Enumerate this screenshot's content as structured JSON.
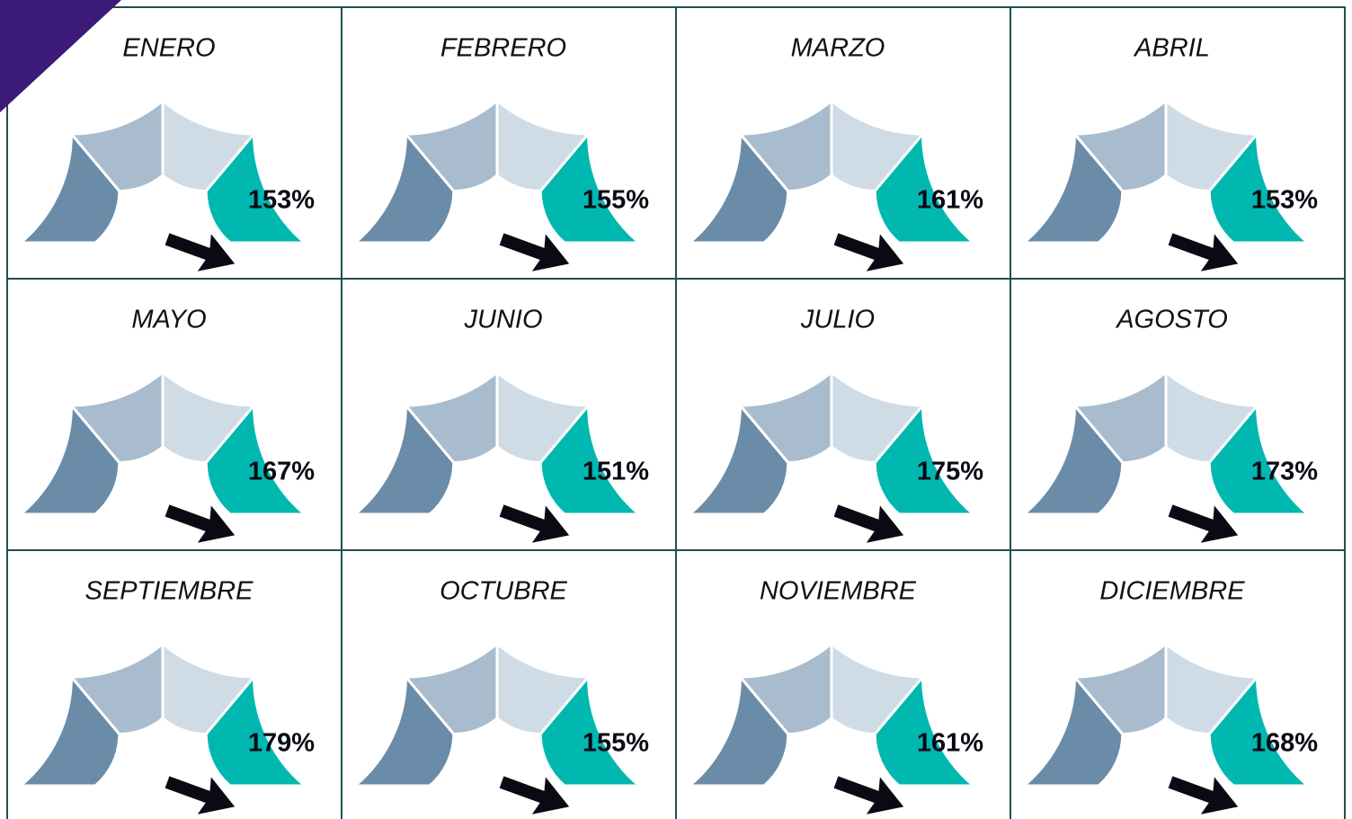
{
  "chart_data": [
    {
      "type": "gauge",
      "title": "ENERO",
      "values": [
        153
      ],
      "value_labels": [
        "153%"
      ],
      "colors": [
        "#6a8ca8",
        "#a9bccd",
        "#cfdce6",
        "#00b8b0"
      ]
    },
    {
      "type": "gauge",
      "title": "FEBRERO",
      "values": [
        155
      ],
      "value_labels": [
        "155%"
      ],
      "colors": [
        "#6a8ca8",
        "#a9bccd",
        "#cfdce6",
        "#00b8b0"
      ]
    },
    {
      "type": "gauge",
      "title": "MARZO",
      "values": [
        161
      ],
      "value_labels": [
        "161%"
      ],
      "colors": [
        "#6a8ca8",
        "#a9bccd",
        "#cfdce6",
        "#00b8b0"
      ]
    },
    {
      "type": "gauge",
      "title": "ABRIL",
      "values": [
        153
      ],
      "value_labels": [
        "153%"
      ],
      "colors": [
        "#6a8ca8",
        "#a9bccd",
        "#cfdce6",
        "#00b8b0"
      ]
    },
    {
      "type": "gauge",
      "title": "MAYO",
      "values": [
        167
      ],
      "value_labels": [
        "167%"
      ],
      "colors": [
        "#6a8ca8",
        "#a9bccd",
        "#cfdce6",
        "#00b8b0"
      ]
    },
    {
      "type": "gauge",
      "title": "JUNIO",
      "values": [
        151
      ],
      "value_labels": [
        "151%"
      ],
      "colors": [
        "#6a8ca8",
        "#a9bccd",
        "#cfdce6",
        "#00b8b0"
      ]
    },
    {
      "type": "gauge",
      "title": "JULIO",
      "values": [
        175
      ],
      "value_labels": [
        "175%"
      ],
      "colors": [
        "#6a8ca8",
        "#a9bccd",
        "#cfdce6",
        "#00b8b0"
      ]
    },
    {
      "type": "gauge",
      "title": "AGOSTO",
      "values": [
        173
      ],
      "value_labels": [
        "173%"
      ],
      "colors": [
        "#6a8ca8",
        "#a9bccd",
        "#cfdce6",
        "#00b8b0"
      ]
    },
    {
      "type": "gauge",
      "title": "SEPTIEMBRE",
      "values": [
        179
      ],
      "value_labels": [
        "179%"
      ],
      "colors": [
        "#6a8ca8",
        "#a9bccd",
        "#cfdce6",
        "#00b8b0"
      ]
    },
    {
      "type": "gauge",
      "title": "OCTUBRE",
      "values": [
        155
      ],
      "value_labels": [
        "155%"
      ],
      "colors": [
        "#6a8ca8",
        "#a9bccd",
        "#cfdce6",
        "#00b8b0"
      ]
    },
    {
      "type": "gauge",
      "title": "NOVIEMBRE",
      "values": [
        161
      ],
      "value_labels": [
        "161%"
      ],
      "colors": [
        "#6a8ca8",
        "#a9bccd",
        "#cfdce6",
        "#00b8b0"
      ]
    },
    {
      "type": "gauge",
      "title": "DICIEMBRE",
      "values": [
        168
      ],
      "value_labels": [
        "168%"
      ],
      "colors": [
        "#6a8ca8",
        "#a9bccd",
        "#cfdce6",
        "#00b8b0"
      ]
    }
  ]
}
